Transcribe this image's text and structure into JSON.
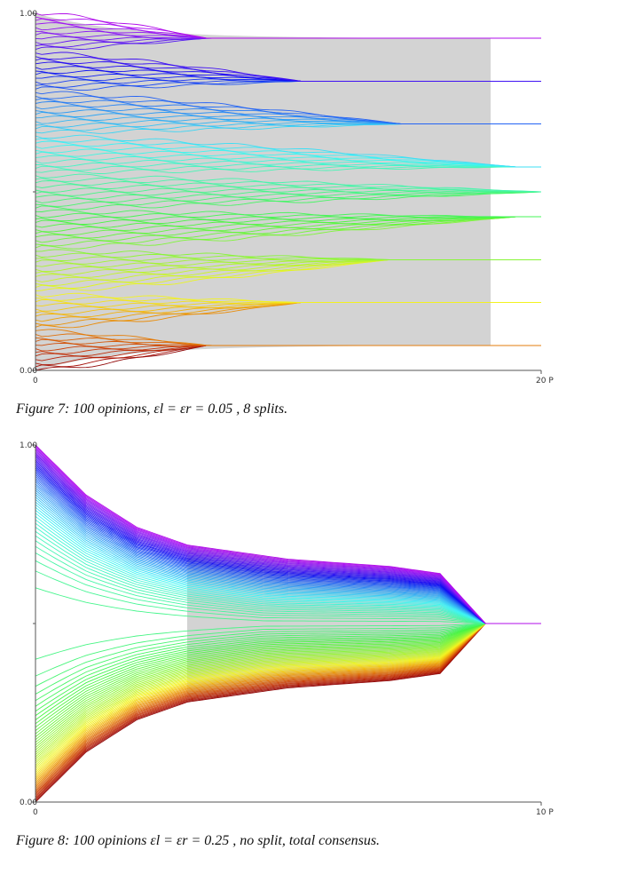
{
  "chart_data": [
    {
      "type": "line",
      "caption": "Figure 7: 100 opinions,  εl = εr = 0.05 , 8 splits.",
      "x_tick_labels": [
        "0",
        "20 P"
      ],
      "y_tick_labels": [
        "0.00",
        "1.00"
      ],
      "xlim": [
        0,
        20
      ],
      "ylim": [
        0,
        1
      ],
      "agents": 100,
      "clusters": [
        0.07,
        0.19,
        0.31,
        0.43,
        0.5,
        0.57,
        0.69,
        0.81,
        0.93
      ],
      "groups": [
        {
          "members": [
            0,
            11
          ],
          "cluster": 0,
          "t_converge": 6.8
        },
        {
          "members": [
            12,
            21
          ],
          "cluster": 1,
          "t_converge": 10.5
        },
        {
          "members": [
            22,
            33
          ],
          "cluster": 2,
          "t_converge": 14.0
        },
        {
          "members": [
            34,
            44
          ],
          "cluster": 3,
          "t_converge": 19.0
        },
        {
          "members": [
            45,
            54
          ],
          "cluster": 4,
          "t_converge": 20.0
        },
        {
          "members": [
            55,
            65
          ],
          "cluster": 5,
          "t_converge": 19.0
        },
        {
          "members": [
            66,
            77
          ],
          "cluster": 6,
          "t_converge": 14.5
        },
        {
          "members": [
            78,
            88
          ],
          "cluster": 7,
          "t_converge": 10.5
        },
        {
          "members": [
            89,
            99
          ],
          "cluster": 8,
          "t_converge": 6.8
        }
      ]
    },
    {
      "type": "line",
      "caption": "Figure 8: 100 opinions εl = εr = 0.25 , no split, total consensus.",
      "x_tick_labels": [
        "0",
        "10 P"
      ],
      "y_tick_labels": [
        "0.00",
        "1.00"
      ],
      "xlim": [
        0,
        10
      ],
      "ylim": [
        0,
        1
      ],
      "agents": 100,
      "consensus": 0.5,
      "t_consensus": 8.9,
      "upper_envelope": [
        [
          0,
          1.0
        ],
        [
          1,
          0.86
        ],
        [
          2,
          0.77
        ],
        [
          3,
          0.72
        ],
        [
          4,
          0.7
        ],
        [
          5,
          0.68
        ],
        [
          6,
          0.67
        ],
        [
          7,
          0.66
        ],
        [
          8,
          0.64
        ],
        [
          8.9,
          0.5
        ],
        [
          10,
          0.5
        ]
      ],
      "lower_envelope": [
        [
          0,
          0.0
        ],
        [
          1,
          0.14
        ],
        [
          2,
          0.23
        ],
        [
          3,
          0.28
        ],
        [
          4,
          0.3
        ],
        [
          5,
          0.32
        ],
        [
          6,
          0.33
        ],
        [
          7,
          0.34
        ],
        [
          8,
          0.36
        ],
        [
          8.9,
          0.5
        ],
        [
          10,
          0.5
        ]
      ]
    }
  ]
}
